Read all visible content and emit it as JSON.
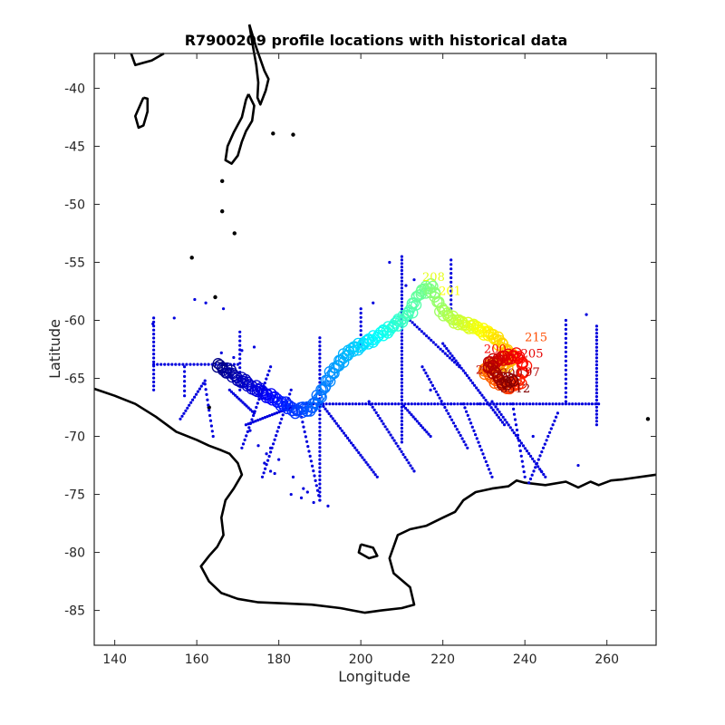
{
  "chart_data": {
    "type": "scatter",
    "title": "R7900209 profile locations with historical data",
    "xlabel": "Longitude",
    "ylabel": "Latitude",
    "xlim": [
      135,
      272
    ],
    "ylim": [
      -88,
      -37
    ],
    "xticks": [
      140,
      160,
      180,
      200,
      220,
      240,
      260
    ],
    "yticks": [
      -40,
      -45,
      -50,
      -55,
      -60,
      -65,
      -70,
      -75,
      -80,
      -85
    ],
    "grid": false,
    "legend": "none",
    "colors": {
      "historical": "#0000dd",
      "coastline": "#000000",
      "profile_colormap": [
        "#00008f",
        "#0000ff",
        "#0080ff",
        "#00ffff",
        "#80ff80",
        "#ffff00",
        "#ff8000",
        "#ff0000",
        "#800000"
      ]
    },
    "series": [
      {
        "role": "historical",
        "segments": [
          {
            "from": [
              186,
              -67.2
            ],
            "to": [
              258,
              -67.2
            ],
            "step": 0.8
          },
          {
            "from": [
              210,
              -54.5
            ],
            "to": [
              210,
              -70.5
            ],
            "step": 0.3
          },
          {
            "from": [
              257.5,
              -60.5
            ],
            "to": [
              257.5,
              -69
            ],
            "step": 0.3
          },
          {
            "from": [
              190,
              -61.5
            ],
            "to": [
              190,
              -75.5
            ],
            "step": 0.35
          },
          {
            "from": [
              149.5,
              -59.8
            ],
            "to": [
              149.5,
              -66
            ],
            "step": 0.35
          },
          {
            "from": [
              170.5,
              -61
            ],
            "to": [
              170.5,
              -66
            ],
            "step": 0.4
          },
          {
            "from": [
              149.5,
              -63.8
            ],
            "to": [
              170,
              -63.8
            ],
            "step": 0.9
          },
          {
            "from": [
              162,
              -65.2
            ],
            "to": [
              156,
              -68.5
            ],
            "step": 0.5
          },
          {
            "from": [
              178,
              -64
            ],
            "to": [
              171,
              -71
            ],
            "step": 0.5
          },
          {
            "from": [
              172,
              -69
            ],
            "to": [
              183,
              -67.5
            ],
            "step": 0.6
          },
          {
            "from": [
              162,
              -65.5
            ],
            "to": [
              164,
              -70
            ],
            "step": 0.5
          },
          {
            "from": [
              185,
              -67.5
            ],
            "to": [
              190,
              -75.5
            ],
            "step": 0.5
          },
          {
            "from": [
              202,
              -67
            ],
            "to": [
              213,
              -73
            ],
            "step": 0.5
          },
          {
            "from": [
              215,
              -64
            ],
            "to": [
              226,
              -71
            ],
            "step": 0.5
          },
          {
            "from": [
              220,
              -62
            ],
            "to": [
              235,
              -69
            ],
            "step": 0.5
          },
          {
            "from": [
              232,
              -67
            ],
            "to": [
              245,
              -73.5
            ],
            "step": 0.5
          },
          {
            "from": [
              248,
              -68
            ],
            "to": [
              241,
              -74
            ],
            "step": 0.5
          },
          {
            "from": [
              250,
              -60
            ],
            "to": [
              250,
              -67
            ],
            "step": 0.4
          },
          {
            "from": [
              212,
              -60
            ],
            "to": [
              224,
              -64
            ],
            "step": 0.6
          },
          {
            "from": [
              200,
              -59
            ],
            "to": [
              200,
              -62
            ],
            "step": 0.4
          },
          {
            "from": [
              183,
              -66
            ],
            "to": [
              176,
              -73.5
            ],
            "step": 0.5
          },
          {
            "from": [
              190,
              -67
            ],
            "to": [
              204,
              -73.5
            ],
            "step": 0.5
          },
          {
            "from": [
              225,
              -67.2
            ],
            "to": [
              232,
              -73.5
            ],
            "step": 0.5
          },
          {
            "from": [
              237,
              -67.2
            ],
            "to": [
              240,
              -73.5
            ],
            "step": 0.5
          },
          {
            "from": [
              210,
              -67.2
            ],
            "to": [
              217,
              -70
            ],
            "step": 0.5
          },
          {
            "from": [
              157,
              -64
            ],
            "to": [
              157,
              -66.5
            ],
            "step": 0.4
          },
          {
            "from": [
              168,
              -66
            ],
            "to": [
              174,
              -68
            ],
            "step": 0.5
          },
          {
            "from": [
              222,
              -54.8
            ],
            "to": [
              222,
              -59
            ],
            "step": 0.4
          }
        ],
        "points": [
          [
            159.5,
            -58.2
          ],
          [
            154.5,
            -59.8
          ],
          [
            149.3,
            -60.3
          ],
          [
            162.2,
            -58.5
          ],
          [
            166.5,
            -59
          ],
          [
            177,
            -71.5
          ],
          [
            178,
            -73
          ],
          [
            176.5,
            -72.3
          ],
          [
            183,
            -75
          ],
          [
            186,
            -74.5
          ],
          [
            185.5,
            -75.3
          ],
          [
            187,
            -74.8
          ],
          [
            183.5,
            -73.5
          ],
          [
            188.5,
            -75.7
          ],
          [
            192,
            -76
          ],
          [
            207,
            -55
          ],
          [
            211,
            -57
          ],
          [
            213,
            -56.5
          ],
          [
            203,
            -58.5
          ],
          [
            217,
            -66
          ],
          [
            222,
            -67.2
          ],
          [
            229,
            -67.2
          ],
          [
            242,
            -70
          ],
          [
            244,
            -73
          ],
          [
            253,
            -72.5
          ],
          [
            255,
            -59.5
          ],
          [
            173,
            -69.5
          ],
          [
            178,
            -71
          ],
          [
            180,
            -72
          ],
          [
            179,
            -73.2
          ],
          [
            175,
            -70.8
          ],
          [
            169,
            -63.2
          ],
          [
            166,
            -62.8
          ],
          [
            171,
            -62.6
          ],
          [
            174,
            -62.3
          ]
        ]
      },
      {
        "role": "float_profiles",
        "path": [
          [
            165,
            -63.8
          ],
          [
            170,
            -65.0
          ],
          [
            175,
            -66.0
          ],
          [
            180,
            -67.0
          ],
          [
            184,
            -67.8
          ],
          [
            188,
            -67.6
          ],
          [
            190,
            -66.5
          ],
          [
            193,
            -64.5
          ],
          [
            197,
            -62.7
          ],
          [
            203,
            -61.6
          ],
          [
            208,
            -60.5
          ],
          [
            212,
            -59.3
          ],
          [
            214,
            -57.8
          ],
          [
            217,
            -57.0
          ],
          [
            220,
            -59.3
          ],
          [
            224,
            -60.2
          ],
          [
            228,
            -60.6
          ],
          [
            233,
            -61.5
          ],
          [
            236,
            -62.8
          ],
          [
            237,
            -63.2
          ],
          [
            235,
            -64.0
          ],
          [
            232,
            -63.8
          ],
          [
            230,
            -64.3
          ],
          [
            233,
            -65.2
          ],
          [
            236,
            -65.8
          ],
          [
            239,
            -65.2
          ],
          [
            240,
            -64.0
          ],
          [
            238,
            -63.0
          ],
          [
            234,
            -63.3
          ],
          [
            231,
            -63.8
          ],
          [
            235,
            -65.5
          ],
          [
            237,
            -65.0
          ]
        ],
        "count": 330,
        "labels": [
          {
            "text": "208",
            "lon": 215,
            "lat": -56.6,
            "t": 0.6
          },
          {
            "text": "201",
            "lon": 219,
            "lat": -57.8,
            "t": 0.62
          },
          {
            "text": "215",
            "lon": 240,
            "lat": -61.8,
            "t": 0.8
          },
          {
            "text": "200",
            "lon": 230,
            "lat": -62.8,
            "t": 0.88
          },
          {
            "text": "205",
            "lon": 239,
            "lat": -63.2,
            "t": 0.9
          },
          {
            "text": "2",
            "lon": 228,
            "lat": -64.6,
            "t": 0.94
          },
          {
            "text": "300",
            "lon": 234,
            "lat": -64.9,
            "t": 0.96
          },
          {
            "text": "97",
            "lon": 240,
            "lat": -64.8,
            "t": 0.95
          },
          {
            "text": "3512",
            "lon": 234,
            "lat": -66.2,
            "t": 1.0
          }
        ]
      }
    ]
  }
}
